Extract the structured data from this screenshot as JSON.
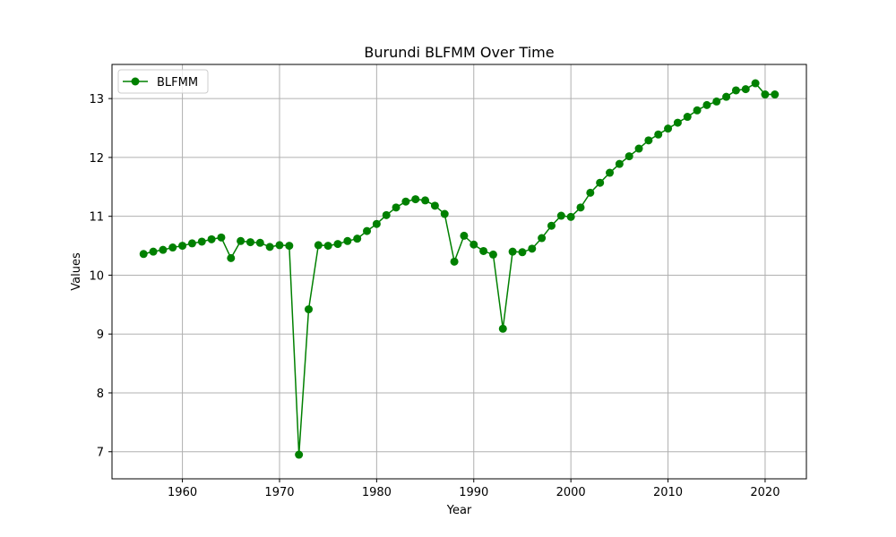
{
  "chart_data": {
    "type": "line",
    "title": "Burundi BLFMM Over Time",
    "xlabel": "Year",
    "ylabel": "Values",
    "xlim": [
      1952.75,
      2024.25
    ],
    "ylim": [
      6.54,
      13.58
    ],
    "xticks": [
      1960,
      1970,
      1980,
      1990,
      2000,
      2010,
      2020
    ],
    "yticks": [
      7,
      8,
      9,
      10,
      11,
      12,
      13
    ],
    "grid": true,
    "legend_position": "upper-left",
    "colors": {
      "series": "#008000",
      "grid": "#b0b0b0",
      "axis": "#000000"
    },
    "series": [
      {
        "name": "BLFMM",
        "marker": "circle",
        "x": [
          1956,
          1957,
          1958,
          1959,
          1960,
          1961,
          1962,
          1963,
          1964,
          1965,
          1966,
          1967,
          1968,
          1969,
          1970,
          1971,
          1972,
          1973,
          1974,
          1975,
          1976,
          1977,
          1978,
          1979,
          1980,
          1981,
          1982,
          1983,
          1984,
          1985,
          1986,
          1987,
          1988,
          1989,
          1990,
          1991,
          1992,
          1993,
          1994,
          1995,
          1996,
          1997,
          1998,
          1999,
          2000,
          2001,
          2002,
          2003,
          2004,
          2005,
          2006,
          2007,
          2008,
          2009,
          2010,
          2011,
          2012,
          2013,
          2014,
          2015,
          2016,
          2017,
          2018,
          2019,
          2020,
          2021
        ],
        "values": [
          10.36,
          10.4,
          10.43,
          10.47,
          10.5,
          10.54,
          10.57,
          10.61,
          10.64,
          10.29,
          10.58,
          10.56,
          10.55,
          10.48,
          10.51,
          10.5,
          6.95,
          9.42,
          10.51,
          10.5,
          10.53,
          10.58,
          10.62,
          10.75,
          10.87,
          11.02,
          11.15,
          11.25,
          11.29,
          11.27,
          11.18,
          11.04,
          10.23,
          10.67,
          10.52,
          10.41,
          10.35,
          9.09,
          10.4,
          10.39,
          10.45,
          10.63,
          10.84,
          11.01,
          10.99,
          11.15,
          11.4,
          11.57,
          11.74,
          11.89,
          12.02,
          12.15,
          12.29,
          12.39,
          12.49,
          12.59,
          12.69,
          12.8,
          12.89,
          12.95,
          13.03,
          13.14,
          13.16,
          13.26,
          13.07,
          13.07
        ]
      }
    ]
  }
}
